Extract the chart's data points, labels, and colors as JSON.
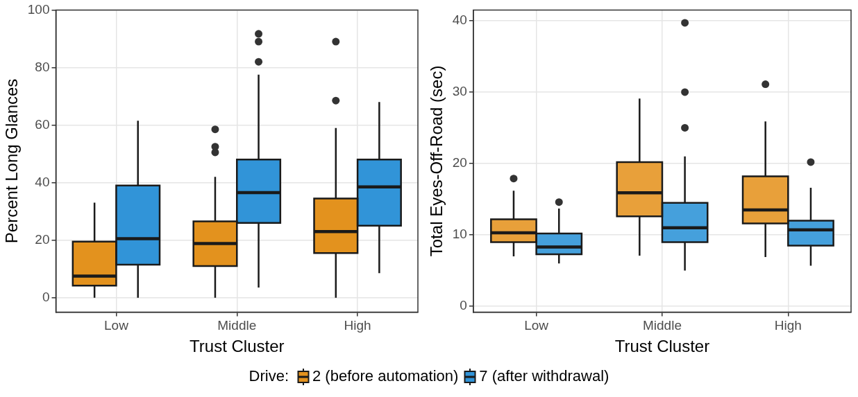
{
  "chart_data": [
    {
      "type": "box",
      "xlabel": "Trust Cluster",
      "ylabel": "Percent Long Glances",
      "categories": [
        "Low",
        "Middle",
        "High"
      ],
      "ylim": [
        -5,
        100
      ],
      "yticks": [
        0,
        20,
        40,
        60,
        80,
        100
      ],
      "grid": true,
      "legend": "bottom",
      "legend_title": "Drive:",
      "series": [
        {
          "name": "2 (before automation)",
          "color": "#e3921e",
          "boxes": [
            {
              "low": 0,
              "q1": 4.2,
              "median": 7.5,
              "q3": 19.5,
              "high": 33
            },
            {
              "low": 0,
              "q1": 11,
              "median": 18.8,
              "q3": 26.5,
              "high": 42,
              "outliers": [
                50.5,
                52.5,
                58.5
              ]
            },
            {
              "low": 0,
              "q1": 15.5,
              "median": 23,
              "q3": 34.5,
              "high": 59,
              "outliers": [
                68.5,
                89
              ]
            }
          ]
        },
        {
          "name": "7 (after withdrawal)",
          "color": "#3194d8",
          "boxes": [
            {
              "low": 0,
              "q1": 11.5,
              "median": 20.5,
              "q3": 39,
              "high": 61.5
            },
            {
              "low": 3.5,
              "q1": 26,
              "median": 36.5,
              "q3": 48,
              "high": 77.5,
              "outliers": [
                82,
                89,
                91.7
              ]
            },
            {
              "low": 8.5,
              "q1": 25,
              "median": 38.5,
              "q3": 48,
              "high": 68
            }
          ]
        }
      ]
    },
    {
      "type": "box",
      "xlabel": "Trust Cluster",
      "ylabel": "Total Eyes-Off-Road (sec)",
      "categories": [
        "Low",
        "Middle",
        "High"
      ],
      "ylim": [
        -0.8,
        41.5
      ],
      "yticks": [
        0,
        10,
        20,
        30,
        40
      ],
      "grid": true,
      "series": [
        {
          "color": "#e8a03a",
          "boxes": [
            {
              "low": 7,
              "q1": 9,
              "median": 10.3,
              "q3": 12.2,
              "high": 16.2,
              "outliers": [
                17.9
              ]
            },
            {
              "low": 7.1,
              "q1": 12.6,
              "median": 15.9,
              "q3": 20.2,
              "high": 29.1
            },
            {
              "low": 6.9,
              "q1": 11.6,
              "median": 13.5,
              "q3": 18.2,
              "high": 25.9,
              "outliers": [
                31.1
              ]
            }
          ]
        },
        {
          "color": "#45a0dc",
          "boxes": [
            {
              "low": 6,
              "q1": 7.3,
              "median": 8.3,
              "q3": 10.2,
              "high": 13.7,
              "outliers": [
                14.6
              ]
            },
            {
              "low": 5,
              "q1": 9,
              "median": 11,
              "q3": 14.5,
              "high": 21,
              "outliers": [
                25,
                30,
                39.7
              ]
            },
            {
              "low": 5.7,
              "q1": 8.5,
              "median": 10.7,
              "q3": 12,
              "high": 16.6,
              "outliers": [
                20.2
              ]
            }
          ]
        }
      ]
    }
  ]
}
